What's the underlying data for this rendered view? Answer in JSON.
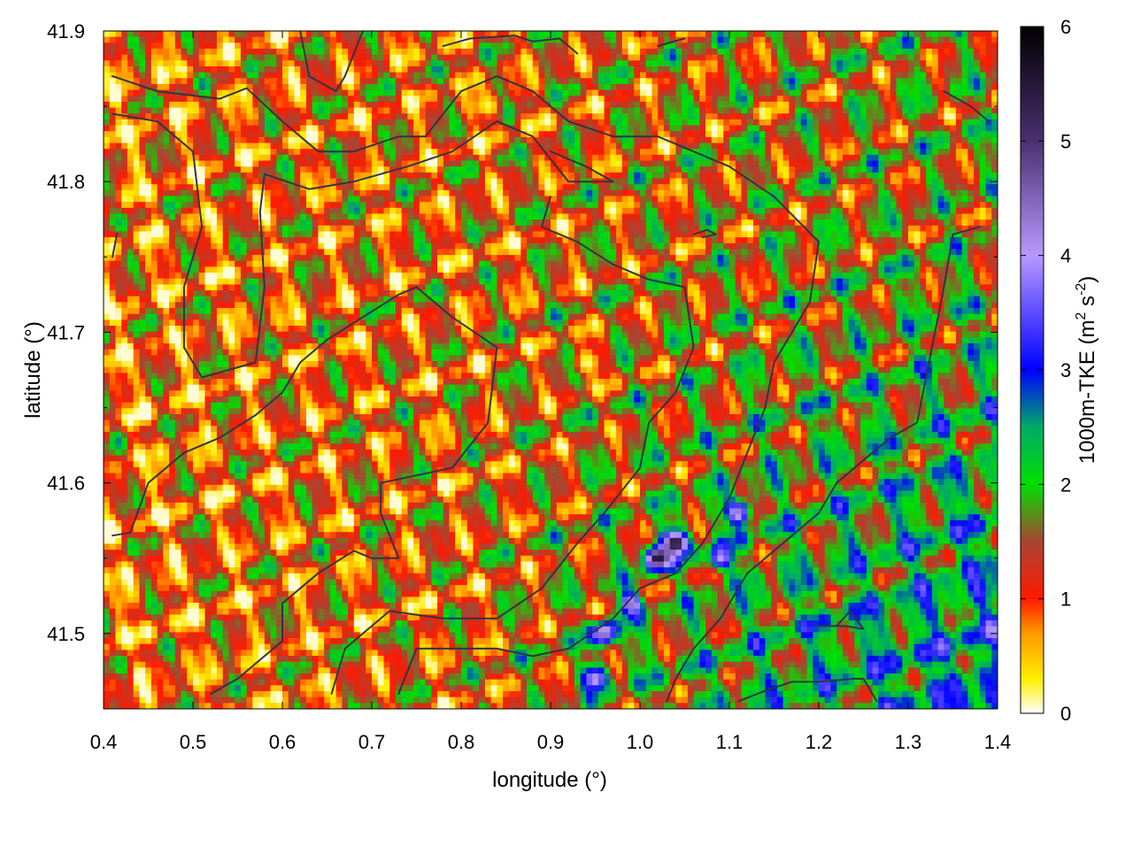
{
  "chart_data": {
    "type": "heatmap",
    "xlabel": "longitude (°)",
    "ylabel": "latitude (°)",
    "xlim": [
      0.4,
      1.4
    ],
    "ylim": [
      41.45,
      41.9
    ],
    "x_ticks": [
      0.4,
      0.5,
      0.6,
      0.7,
      0.8,
      0.9,
      1.0,
      1.1,
      1.2,
      1.3,
      1.4
    ],
    "y_ticks": [
      41.5,
      41.6,
      41.7,
      41.8,
      41.9
    ],
    "x_tick_labels": [
      "0.4",
      "0.5",
      "0.6",
      "0.7",
      "0.8",
      "0.9",
      "1.0",
      "1.1",
      "1.2",
      "1.3",
      "1.4"
    ],
    "y_tick_labels": [
      "41.5",
      "41.6",
      "41.7",
      "41.8",
      "41.9"
    ],
    "colorbar": {
      "label_main": "1000m-TKE (m",
      "label_sup1": "2",
      "label_mid": " s",
      "label_sup2": "-2",
      "label_end": ")",
      "range": [
        0,
        6
      ],
      "ticks": [
        0,
        1,
        2,
        3,
        4,
        5,
        6
      ],
      "tick_labels": [
        "0",
        "1",
        "2",
        "3",
        "4",
        "5",
        "6"
      ],
      "palette": [
        {
          "value": 0.0,
          "color": "#ffffff"
        },
        {
          "value": 0.3,
          "color": "#ffee00"
        },
        {
          "value": 0.7,
          "color": "#ff9900"
        },
        {
          "value": 1.0,
          "color": "#ff1a00"
        },
        {
          "value": 1.5,
          "color": "#aa4433"
        },
        {
          "value": 2.0,
          "color": "#00e000"
        },
        {
          "value": 2.5,
          "color": "#00aa66"
        },
        {
          "value": 3.0,
          "color": "#0000ff"
        },
        {
          "value": 4.0,
          "color": "#b799ff"
        },
        {
          "value": 5.0,
          "color": "#4a3070"
        },
        {
          "value": 6.0,
          "color": "#000000"
        }
      ]
    },
    "boundary_color": "#333344",
    "grid": false,
    "legend": "none",
    "hotspots": [
      {
        "lon": 1.02,
        "lat": 41.55,
        "value": 5.7
      },
      {
        "lon": 1.04,
        "lat": 41.56,
        "value": 5.6
      },
      {
        "lon": 0.96,
        "lat": 41.5,
        "value": 4.6
      },
      {
        "lon": 0.99,
        "lat": 41.52,
        "value": 4.4
      },
      {
        "lon": 0.95,
        "lat": 41.47,
        "value": 4.2
      },
      {
        "lon": 1.11,
        "lat": 41.58,
        "value": 4.3
      },
      {
        "lon": 1.09,
        "lat": 41.55,
        "value": 4.0
      },
      {
        "lon": 0.94,
        "lat": 41.68,
        "value": 0.1
      },
      {
        "lon": 0.83,
        "lat": 41.85,
        "value": 0.2
      }
    ]
  }
}
